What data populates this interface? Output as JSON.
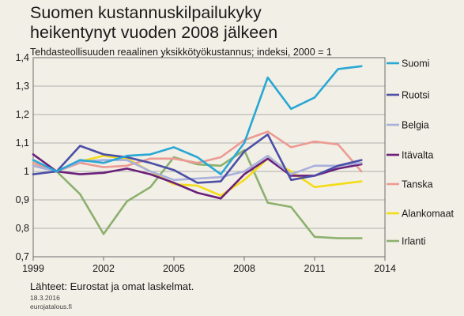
{
  "title": "Suomen kustannuskilpailukyky heikentynyt vuoden 2008 jälkeen",
  "subtitle": "Tehdasteollisuuden reaalinen yksikkötyökustannus;  indeksi, 2000 = 1",
  "source": "Lähteet: Eurostat ja omat laskelmat.",
  "date": "18.3.2016",
  "site": "eurojatalous.fi",
  "chart_data": {
    "type": "line",
    "title": "Suomen kustannuskilpailukyky heikentynyt vuoden 2008 jälkeen",
    "subtitle": "Tehdasteollisuuden reaalinen yksikkötyökustannus;  indeksi, 2000 = 1",
    "xlim": [
      1999,
      2014
    ],
    "ylim": [
      0.7,
      1.4
    ],
    "x_ticks": [
      1999,
      2002,
      2005,
      2008,
      2011,
      2014
    ],
    "y_ticks": [
      0.7,
      0.8,
      0.9,
      1.0,
      1.1,
      1.2,
      1.3,
      1.4
    ],
    "y_tick_labels": [
      "0,7",
      "0,8",
      "0,9",
      "1",
      "1,1",
      "1,2",
      "1,3",
      "1,4"
    ],
    "grid": true,
    "legend_position": "right",
    "x": [
      1999,
      2000,
      2001,
      2002,
      2003,
      2004,
      2005,
      2006,
      2007,
      2008,
      2009,
      2010,
      2011,
      2012,
      2013
    ],
    "series": [
      {
        "name": "Suomi",
        "color": "#2aa7d4",
        "values": [
          1.04,
          1.0,
          1.04,
          1.03,
          1.055,
          1.06,
          1.085,
          1.05,
          0.99,
          1.1,
          1.33,
          1.22,
          1.26,
          1.36,
          1.37
        ]
      },
      {
        "name": "Ruotsi",
        "color": "#4b4fa6",
        "values": [
          0.99,
          1.0,
          1.09,
          1.06,
          1.05,
          1.03,
          1.005,
          0.96,
          0.965,
          1.07,
          1.13,
          0.97,
          0.985,
          1.02,
          1.04
        ]
      },
      {
        "name": "Belgia",
        "color": "#a9b0dc",
        "values": [
          1.02,
          1.0,
          1.035,
          1.04,
          1.04,
          1.0,
          0.97,
          0.975,
          0.98,
          1.0,
          1.055,
          0.99,
          1.02,
          1.02,
          1.03
        ]
      },
      {
        "name": "Itävalta",
        "color": "#6a1f7a",
        "values": [
          1.06,
          1.0,
          0.99,
          0.995,
          1.01,
          0.99,
          0.96,
          0.925,
          0.905,
          0.99,
          1.045,
          0.985,
          0.985,
          1.01,
          1.025
        ]
      },
      {
        "name": "Tanska",
        "color": "#ec9a92",
        "values": [
          1.03,
          1.0,
          1.03,
          1.015,
          1.02,
          1.045,
          1.045,
          1.03,
          1.05,
          1.11,
          1.14,
          1.085,
          1.105,
          1.095,
          1.0
        ]
      },
      {
        "name": "Alankomaat",
        "color": "#f4dc16",
        "values": [
          1.03,
          1.0,
          1.035,
          1.055,
          1.045,
          1.0,
          0.955,
          0.95,
          0.915,
          0.97,
          1.045,
          1.0,
          0.945,
          0.955,
          0.965
        ]
      },
      {
        "name": "Irlanti",
        "color": "#8cb06e",
        "values": [
          1.02,
          1.0,
          0.92,
          0.78,
          0.895,
          0.945,
          1.05,
          1.025,
          1.02,
          1.075,
          0.89,
          0.875,
          0.77,
          0.765,
          0.765
        ]
      }
    ]
  }
}
